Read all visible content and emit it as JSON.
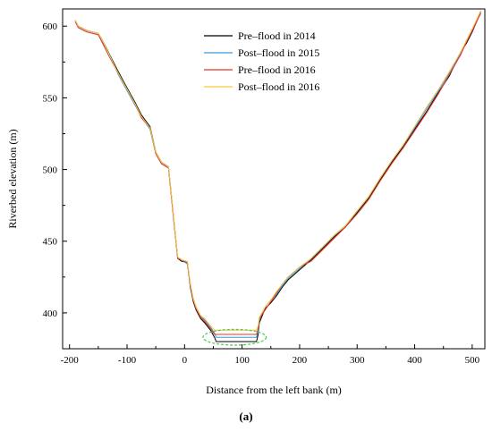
{
  "chart_data": {
    "type": "line",
    "title": "",
    "xlabel": "Distance from the left bank (m)",
    "ylabel": "Riverbed elevation (m)",
    "panel_label": "(a)",
    "xlim": [
      -212,
      522
    ],
    "ylim": [
      375,
      612
    ],
    "xticks": [
      -200,
      -100,
      0,
      100,
      200,
      300,
      400,
      500
    ],
    "yticks": [
      400,
      450,
      500,
      550,
      600
    ],
    "xtick_labels": [
      "-200",
      "-100",
      "0",
      "100",
      "200",
      "300",
      "400",
      "500"
    ],
    "ytick_labels": [
      "400",
      "450",
      "500",
      "550",
      "600"
    ],
    "grid": false,
    "legend_position": "top-center",
    "annotation": "dashed green ellipse marking the channel bottom",
    "annotation_ellipse": {
      "cx": 87,
      "cy": 383,
      "rx": 55,
      "ry": 5.5,
      "color": "#4cc84c"
    },
    "series": [
      {
        "name": "Pre–flood in 2014",
        "color": "#000000",
        "points": [
          [
            -190,
            604
          ],
          [
            -185,
            600
          ],
          [
            -170,
            597
          ],
          [
            -150,
            595
          ],
          [
            -140,
            588
          ],
          [
            -130,
            580
          ],
          [
            -115,
            568
          ],
          [
            -100,
            557
          ],
          [
            -85,
            546
          ],
          [
            -75,
            538
          ],
          [
            -60,
            530
          ],
          [
            -50,
            512
          ],
          [
            -40,
            505
          ],
          [
            -28,
            502
          ],
          [
            -20,
            470
          ],
          [
            -12,
            438
          ],
          [
            -5,
            436
          ],
          [
            5,
            435
          ],
          [
            10,
            418
          ],
          [
            15,
            408
          ],
          [
            20,
            402
          ],
          [
            28,
            396
          ],
          [
            35,
            393
          ],
          [
            45,
            388
          ],
          [
            52,
            383
          ],
          [
            55,
            380
          ],
          [
            60,
            380
          ],
          [
            80,
            380
          ],
          [
            100,
            380
          ],
          [
            120,
            380
          ],
          [
            125,
            380
          ],
          [
            128,
            385
          ],
          [
            130,
            393
          ],
          [
            140,
            403
          ],
          [
            150,
            407
          ],
          [
            160,
            412
          ],
          [
            170,
            418
          ],
          [
            180,
            423
          ],
          [
            200,
            430
          ],
          [
            220,
            437
          ],
          [
            240,
            445
          ],
          [
            260,
            453
          ],
          [
            280,
            460
          ],
          [
            300,
            470
          ],
          [
            320,
            480
          ],
          [
            340,
            493
          ],
          [
            360,
            505
          ],
          [
            380,
            516
          ],
          [
            400,
            528
          ],
          [
            420,
            540
          ],
          [
            440,
            553
          ],
          [
            460,
            565
          ],
          [
            480,
            582
          ],
          [
            485,
            585
          ],
          [
            490,
            588
          ],
          [
            500,
            596
          ],
          [
            515,
            610
          ]
        ]
      },
      {
        "name": "Post–flood in 2015",
        "color": "#3a9ad9",
        "points": [
          [
            -190,
            604
          ],
          [
            -185,
            599
          ],
          [
            -170,
            596
          ],
          [
            -150,
            594
          ],
          [
            -140,
            587
          ],
          [
            -130,
            580
          ],
          [
            -115,
            566
          ],
          [
            -100,
            555
          ],
          [
            -85,
            544
          ],
          [
            -75,
            537
          ],
          [
            -60,
            528
          ],
          [
            -50,
            511
          ],
          [
            -40,
            504
          ],
          [
            -28,
            502
          ],
          [
            -20,
            470
          ],
          [
            -12,
            439
          ],
          [
            -5,
            437
          ],
          [
            5,
            434
          ],
          [
            10,
            420
          ],
          [
            15,
            410
          ],
          [
            20,
            404
          ],
          [
            28,
            398
          ],
          [
            35,
            395
          ],
          [
            45,
            390
          ],
          [
            52,
            386
          ],
          [
            55,
            383
          ],
          [
            60,
            383
          ],
          [
            80,
            383
          ],
          [
            100,
            383
          ],
          [
            120,
            383
          ],
          [
            125,
            383
          ],
          [
            128,
            387
          ],
          [
            130,
            395
          ],
          [
            140,
            404
          ],
          [
            150,
            409
          ],
          [
            160,
            413
          ],
          [
            170,
            419
          ],
          [
            180,
            424
          ],
          [
            200,
            431
          ],
          [
            220,
            438
          ],
          [
            240,
            446
          ],
          [
            260,
            454
          ],
          [
            280,
            461
          ],
          [
            300,
            471
          ],
          [
            320,
            481
          ],
          [
            340,
            494
          ],
          [
            360,
            506
          ],
          [
            380,
            517
          ],
          [
            400,
            529
          ],
          [
            420,
            542
          ],
          [
            440,
            554
          ],
          [
            460,
            567
          ],
          [
            480,
            581
          ],
          [
            490,
            590
          ],
          [
            500,
            597
          ],
          [
            515,
            610
          ]
        ]
      },
      {
        "name": "Pre–flood in 2016",
        "color": "#e8332a",
        "points": [
          [
            -190,
            603
          ],
          [
            -185,
            599
          ],
          [
            -170,
            596
          ],
          [
            -150,
            594
          ],
          [
            -140,
            586
          ],
          [
            -130,
            578
          ],
          [
            -115,
            567
          ],
          [
            -100,
            556
          ],
          [
            -85,
            545
          ],
          [
            -75,
            536
          ],
          [
            -60,
            529
          ],
          [
            -50,
            511
          ],
          [
            -40,
            504
          ],
          [
            -28,
            501
          ],
          [
            -20,
            469
          ],
          [
            -12,
            438
          ],
          [
            -5,
            437
          ],
          [
            5,
            435
          ],
          [
            10,
            419
          ],
          [
            15,
            409
          ],
          [
            20,
            403
          ],
          [
            28,
            397
          ],
          [
            35,
            394
          ],
          [
            45,
            389
          ],
          [
            52,
            385
          ],
          [
            55,
            385
          ],
          [
            60,
            385
          ],
          [
            80,
            385
          ],
          [
            100,
            385
          ],
          [
            120,
            385
          ],
          [
            125,
            385
          ],
          [
            128,
            389
          ],
          [
            130,
            396
          ],
          [
            140,
            402
          ],
          [
            150,
            408
          ],
          [
            160,
            414
          ],
          [
            170,
            420
          ],
          [
            180,
            425
          ],
          [
            200,
            432
          ],
          [
            220,
            436
          ],
          [
            240,
            444
          ],
          [
            260,
            452
          ],
          [
            280,
            460
          ],
          [
            300,
            469
          ],
          [
            320,
            479
          ],
          [
            340,
            492
          ],
          [
            360,
            504
          ],
          [
            380,
            515
          ],
          [
            400,
            527
          ],
          [
            420,
            539
          ],
          [
            440,
            552
          ],
          [
            460,
            566
          ],
          [
            480,
            580
          ],
          [
            490,
            589
          ],
          [
            500,
            597
          ],
          [
            515,
            609
          ]
        ]
      },
      {
        "name": "Post–flood in 2016",
        "color": "#f5c542",
        "points": [
          [
            -190,
            604
          ],
          [
            -185,
            600
          ],
          [
            -170,
            597
          ],
          [
            -150,
            595
          ],
          [
            -140,
            588
          ],
          [
            -130,
            579
          ],
          [
            -115,
            567
          ],
          [
            -100,
            556
          ],
          [
            -85,
            545
          ],
          [
            -75,
            537
          ],
          [
            -60,
            529
          ],
          [
            -50,
            512
          ],
          [
            -40,
            505
          ],
          [
            -28,
            502
          ],
          [
            -20,
            471
          ],
          [
            -12,
            439
          ],
          [
            -5,
            437
          ],
          [
            5,
            436
          ],
          [
            10,
            420
          ],
          [
            15,
            410
          ],
          [
            20,
            404
          ],
          [
            28,
            398
          ],
          [
            35,
            396
          ],
          [
            45,
            391
          ],
          [
            52,
            388
          ],
          [
            55,
            388
          ],
          [
            60,
            388
          ],
          [
            80,
            388
          ],
          [
            100,
            388
          ],
          [
            120,
            388
          ],
          [
            125,
            388
          ],
          [
            128,
            391
          ],
          [
            130,
            397
          ],
          [
            140,
            404
          ],
          [
            150,
            409
          ],
          [
            160,
            415
          ],
          [
            170,
            420
          ],
          [
            180,
            425
          ],
          [
            200,
            432
          ],
          [
            220,
            438
          ],
          [
            240,
            446
          ],
          [
            260,
            454
          ],
          [
            280,
            461
          ],
          [
            300,
            471
          ],
          [
            320,
            481
          ],
          [
            340,
            494
          ],
          [
            360,
            506
          ],
          [
            380,
            517
          ],
          [
            400,
            530
          ],
          [
            420,
            543
          ],
          [
            440,
            555
          ],
          [
            460,
            568
          ],
          [
            480,
            582
          ],
          [
            490,
            590
          ],
          [
            500,
            598
          ],
          [
            515,
            611
          ]
        ]
      }
    ]
  }
}
